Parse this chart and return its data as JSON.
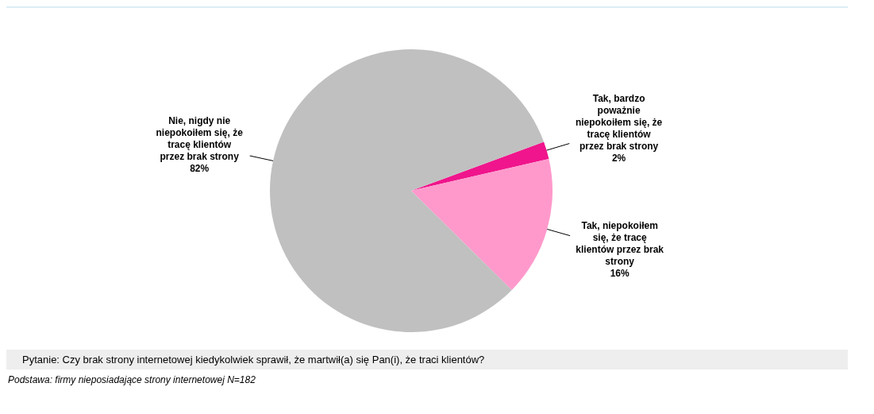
{
  "chart_data": {
    "type": "pie",
    "categories": [
      "Tak, bardzo poważnie niepokoiłem się, że tracę klientów przez brak strony",
      "Tak, niepokoiłem się, że tracę klientów przez brak strony",
      "Nie, nigdy nie niepokoiłem się, że tracę klientów przez brak strony"
    ],
    "values": [
      2,
      16,
      82
    ],
    "value_labels": [
      "2%",
      "16%",
      "82%"
    ],
    "colors": [
      "#f0158c",
      "#ff99cc",
      "#c0c0c0"
    ],
    "legend": false,
    "annotations": [
      "Pytanie: Czy brak strony internetowej kiedykolwiek sprawił, że martwił(a) się Pan(i), że traci klientów?",
      "Podstawa: firmy nieposiadające strony internetowej N=182"
    ]
  }
}
